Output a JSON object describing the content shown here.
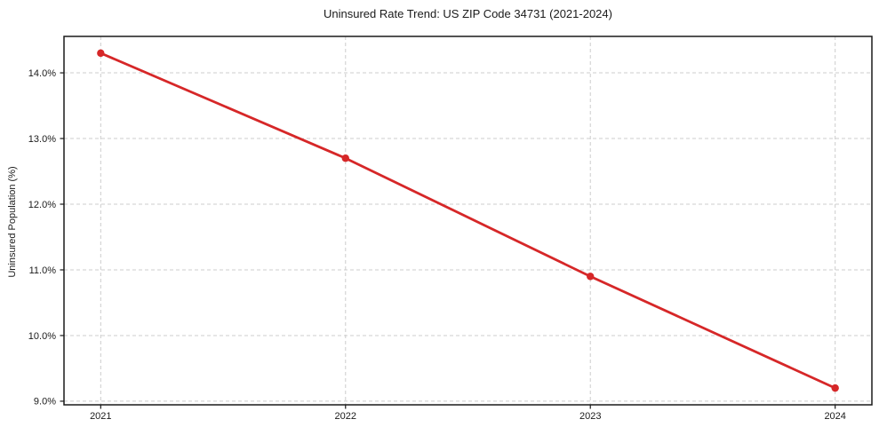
{
  "chart_data": {
    "type": "line",
    "title": "Uninsured Rate Trend: US ZIP Code 34731 (2021-2024)",
    "xlabel": "",
    "ylabel": "Uninsured Population (%)",
    "x": [
      2021,
      2022,
      2023,
      2024
    ],
    "values": [
      14.3,
      12.7,
      10.9,
      9.2
    ],
    "x_tick_labels": [
      "2021",
      "2022",
      "2023",
      "2024"
    ],
    "y_ticks": [
      9.0,
      10.0,
      11.0,
      12.0,
      13.0,
      14.0
    ],
    "y_tick_labels": [
      "9.0%",
      "10.0%",
      "11.0%",
      "12.0%",
      "13.0%",
      "14.0%"
    ],
    "xlim": [
      2020.85,
      2024.15
    ],
    "ylim": [
      8.945,
      14.555
    ],
    "grid": true,
    "grid_style": "dashed",
    "legend": "none",
    "line_color": "#d62728",
    "marker": "circle",
    "grid_color": "#cccccc",
    "axis_color": "#1a1a1a"
  }
}
